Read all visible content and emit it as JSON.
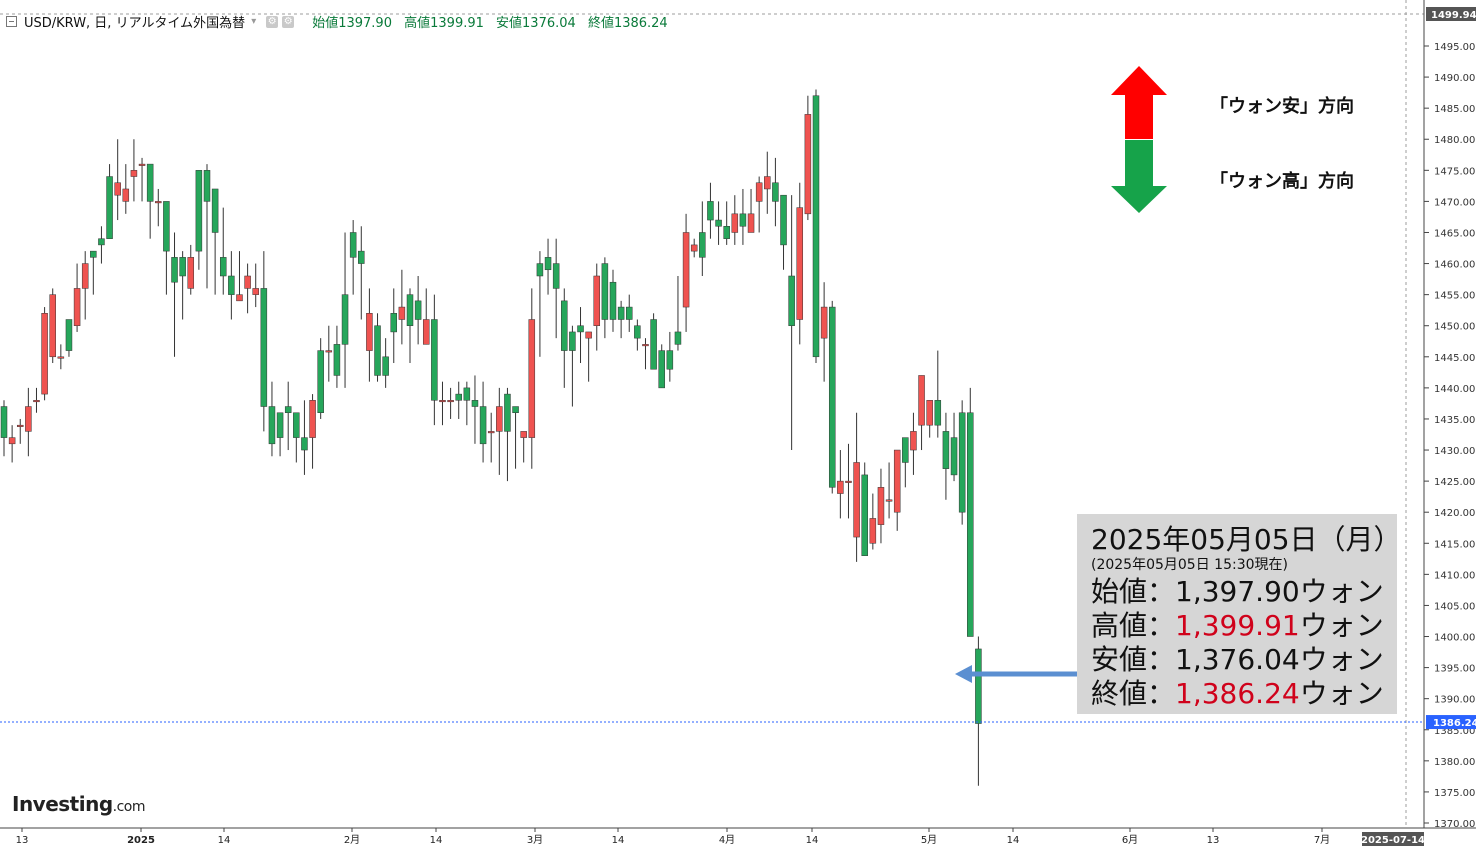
{
  "header": {
    "collapse_icon": "square-minus-icon",
    "symbol": "USD/KRW, 日, リアルタイム外国為替",
    "open": "始値1397.90",
    "high": "高値1399.91",
    "low": "安値1376.04",
    "close": "終値1386.24"
  },
  "legend": {
    "up_label": "「ウォン安」方向",
    "down_label": "「ウォン高」方向",
    "up_color": "#ff0000",
    "down_color": "#16a34a"
  },
  "info": {
    "date": "2025年05月05日（月）",
    "as_of": "(2025年05月05日 15:30現在)",
    "open_label": "始値：",
    "open_value": "1,397.90",
    "high_label": "高値：",
    "high_value": "1,399.91",
    "low_label": "安値：",
    "low_value": "1,376.04",
    "close_label": "終値：",
    "close_value": "1,386.24",
    "unit": "ウォン"
  },
  "brand": {
    "name": "Investing",
    "suffix": ".com"
  },
  "colors": {
    "up": "#ef5350",
    "down": "#26a65b",
    "price_line": "#2962ff",
    "arrow": "#5b8fd1"
  },
  "chart_data": {
    "type": "candlestick",
    "ylim": [
      1370,
      1500
    ],
    "y_ticks": [
      1370,
      1375,
      1380,
      1385,
      1390,
      1395,
      1400,
      1405,
      1410,
      1415,
      1420,
      1425,
      1430,
      1435,
      1440,
      1445,
      1450,
      1455,
      1460,
      1465,
      1470,
      1475,
      1480,
      1485,
      1490,
      1495
    ],
    "y_tick_labels": [
      "1370.00",
      "1375.00",
      "1380.00",
      "1385.00",
      "1390.00",
      "1395.00",
      "1400.00",
      "1405.00",
      "1410.00",
      "1415.00",
      "1420.00",
      "1425.00",
      "1430.00",
      "1435.00",
      "1440.00",
      "1445.00",
      "1450.00",
      "1455.00",
      "1460.00",
      "1465.00",
      "1470.00",
      "1475.00",
      "1480.00",
      "1485.00",
      "1490.00",
      "1495.00"
    ],
    "top_label": "1499.94",
    "last_price": 1386.24,
    "last_price_label": "1386.24",
    "x_labels": [
      "13",
      "2025",
      "14",
      "2月",
      "14",
      "3月",
      "14",
      "4月",
      "14",
      "5月",
      "14",
      "6月",
      "13",
      "7月"
    ],
    "x_end_label": "2025-07-14",
    "candles": [
      [
        1437,
        1432,
        1438,
        1429
      ],
      [
        1431,
        1432,
        1434,
        1428
      ],
      [
        1434,
        1434,
        1435,
        1431
      ],
      [
        1433,
        1437,
        1440,
        1429
      ],
      [
        1438,
        1438,
        1440,
        1436
      ],
      [
        1439,
        1452,
        1453,
        1438
      ],
      [
        1445,
        1455,
        1456,
        1444
      ],
      [
        1445,
        1445,
        1447,
        1443
      ],
      [
        1451,
        1446,
        1449,
        1445
      ],
      [
        1450,
        1456,
        1460,
        1449
      ],
      [
        1456,
        1460,
        1462,
        1451
      ],
      [
        1462,
        1461,
        1462,
        1455
      ],
      [
        1464,
        1463,
        1466,
        1460
      ],
      [
        1474,
        1464,
        1476,
        1465
      ],
      [
        1471,
        1473,
        1480,
        1467
      ],
      [
        1470,
        1472,
        1476,
        1468
      ],
      [
        1474,
        1475,
        1480,
        1470
      ],
      [
        1476,
        1476,
        1477,
        1470
      ],
      [
        1476,
        1470,
        1473,
        1464
      ],
      [
        1470,
        1470,
        1472,
        1466
      ],
      [
        1470,
        1462,
        1468,
        1455
      ],
      [
        1461,
        1457,
        1465,
        1445
      ],
      [
        1461,
        1458,
        1462,
        1451
      ],
      [
        1456,
        1461,
        1463,
        1455
      ],
      [
        1475,
        1462,
        1475,
        1459
      ],
      [
        1475,
        1470,
        1476,
        1456
      ],
      [
        1472,
        1465,
        1468,
        1455
      ],
      [
        1461,
        1458,
        1469,
        1455
      ],
      [
        1458,
        1455,
        1462,
        1451
      ],
      [
        1454,
        1455,
        1462,
        1454
      ],
      [
        1456,
        1458,
        1460,
        1452
      ],
      [
        1455,
        1456,
        1460,
        1453
      ],
      [
        1456,
        1437,
        1462,
        1433
      ],
      [
        1437,
        1431,
        1441,
        1429
      ],
      [
        1436,
        1432,
        1436,
        1429
      ],
      [
        1437,
        1436,
        1441,
        1430
      ],
      [
        1436,
        1432,
        1432,
        1428
      ],
      [
        1432,
        1430,
        1438,
        1426
      ],
      [
        1432,
        1438,
        1439,
        1427
      ],
      [
        1446,
        1436,
        1448,
        1435
      ],
      [
        1446,
        1446,
        1450,
        1441
      ],
      [
        1447,
        1442,
        1450,
        1440
      ],
      [
        1455,
        1447,
        1465,
        1440
      ],
      [
        1465,
        1461,
        1467,
        1455
      ],
      [
        1462,
        1460,
        1466,
        1451
      ],
      [
        1446,
        1452,
        1456,
        1441
      ],
      [
        1450,
        1442,
        1452,
        1441
      ],
      [
        1445,
        1442,
        1448,
        1440
      ],
      [
        1452,
        1449,
        1456,
        1444
      ],
      [
        1451,
        1453,
        1459,
        1447
      ],
      [
        1455,
        1450,
        1456,
        1444
      ],
      [
        1454,
        1451,
        1458,
        1447
      ],
      [
        1447,
        1451,
        1456,
        1447
      ],
      [
        1451,
        1438,
        1455,
        1434
      ],
      [
        1438,
        1438,
        1441,
        1434
      ],
      [
        1438,
        1438,
        1440,
        1435
      ],
      [
        1439,
        1438,
        1441,
        1435
      ],
      [
        1440,
        1438,
        1441,
        1434
      ],
      [
        1438,
        1437,
        1442,
        1431
      ],
      [
        1437,
        1431,
        1441,
        1428
      ],
      [
        1433,
        1433,
        1436,
        1428
      ],
      [
        1433,
        1437,
        1440,
        1426
      ],
      [
        1439,
        1433,
        1440,
        1425
      ],
      [
        1437,
        1436,
        1437,
        1427
      ],
      [
        1432,
        1433,
        1432,
        1428
      ],
      [
        1432,
        1451,
        1456,
        1427
      ],
      [
        1460,
        1458,
        1462,
        1445
      ],
      [
        1461,
        1459,
        1464,
        1455
      ],
      [
        1460,
        1456,
        1464,
        1448
      ],
      [
        1454,
        1446,
        1456,
        1440
      ],
      [
        1449,
        1446,
        1450,
        1437
      ],
      [
        1450,
        1449,
        1453,
        1444
      ],
      [
        1448,
        1449,
        1449,
        1441
      ],
      [
        1450,
        1458,
        1460,
        1446
      ],
      [
        1460,
        1451,
        1461,
        1448
      ],
      [
        1457,
        1451,
        1459,
        1449
      ],
      [
        1453,
        1451,
        1454,
        1448
      ],
      [
        1453,
        1451,
        1455,
        1449
      ],
      [
        1450,
        1448,
        1451,
        1446
      ],
      [
        1447,
        1447,
        1448,
        1443
      ],
      [
        1451,
        1443,
        1452,
        1443
      ],
      [
        1446,
        1440,
        1447,
        1440
      ],
      [
        1446,
        1443,
        1449,
        1441
      ],
      [
        1449,
        1447,
        1458,
        1446
      ],
      [
        1453,
        1465,
        1468,
        1449
      ],
      [
        1462,
        1463,
        1464,
        1461
      ],
      [
        1465,
        1461,
        1470,
        1458
      ],
      [
        1470,
        1467,
        1473,
        1464
      ],
      [
        1467,
        1466,
        1470,
        1463
      ],
      [
        1466,
        1464,
        1470,
        1463
      ],
      [
        1465,
        1468,
        1471,
        1463
      ],
      [
        1468,
        1466,
        1472,
        1463
      ],
      [
        1465,
        1468,
        1472,
        1465
      ],
      [
        1470,
        1473,
        1474,
        1465
      ],
      [
        1472,
        1474,
        1478,
        1468
      ],
      [
        1473,
        1470,
        1477,
        1466
      ],
      [
        1471,
        1463,
        1471,
        1459
      ],
      [
        1458,
        1450,
        1471,
        1430
      ],
      [
        1451,
        1469,
        1473,
        1447
      ],
      [
        1468,
        1484,
        1487,
        1467
      ],
      [
        1487,
        1445,
        1488,
        1444
      ],
      [
        1448,
        1453,
        1457,
        1441
      ],
      [
        1453,
        1424,
        1454,
        1423
      ],
      [
        1423,
        1425,
        1430,
        1419
      ],
      [
        1425,
        1425,
        1431,
        1419
      ],
      [
        1416,
        1428,
        1436,
        1412
      ],
      [
        1426,
        1413,
        1428,
        1413
      ],
      [
        1415,
        1419,
        1423,
        1414
      ],
      [
        1418,
        1424,
        1427,
        1415
      ],
      [
        1422,
        1422,
        1428,
        1419
      ],
      [
        1420,
        1430,
        1430,
        1417
      ],
      [
        1432,
        1428,
        1430,
        1424
      ],
      [
        1430,
        1433,
        1436,
        1426
      ],
      [
        1434,
        1442,
        1442,
        1430
      ],
      [
        1434,
        1438,
        1438,
        1432
      ],
      [
        1438,
        1434,
        1446,
        1432
      ],
      [
        1433,
        1427,
        1436,
        1422
      ],
      [
        1432,
        1426,
        1436,
        1425
      ],
      [
        1436,
        1420,
        1438,
        1418
      ],
      [
        1436,
        1400,
        1440,
        1400
      ],
      [
        1398,
        1386,
        1400,
        1376
      ]
    ]
  }
}
